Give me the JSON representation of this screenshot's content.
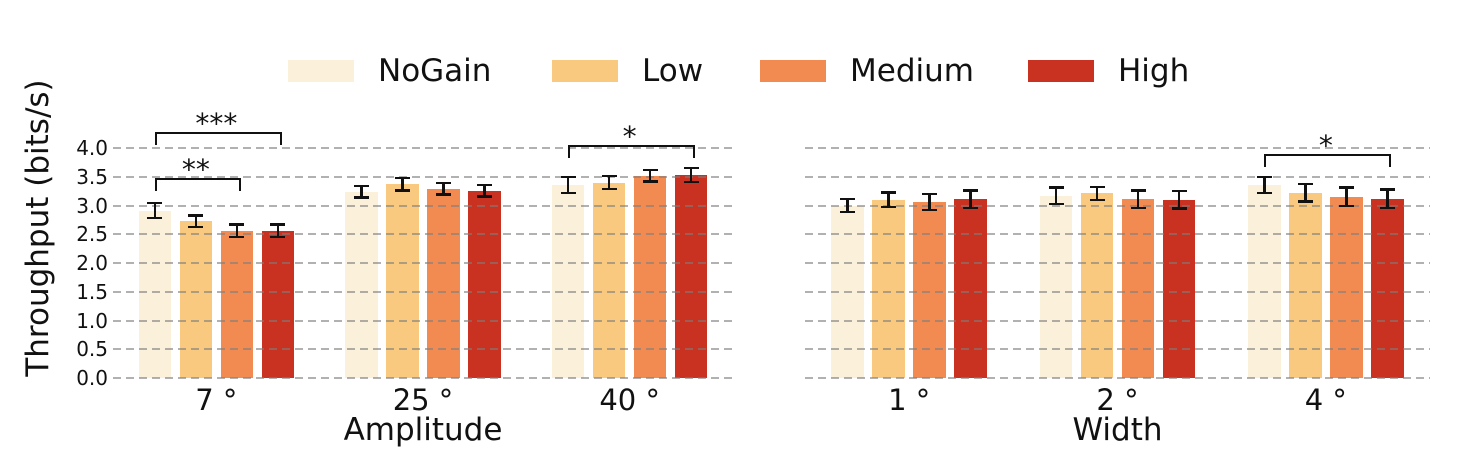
{
  "figure": {
    "ylabel": "Throughput (bits/s)",
    "background_color": "#ffffff",
    "text_color": "#111111",
    "grid_color": "#7d7d7d",
    "errorbar_color": "#111111"
  },
  "chart_data": {
    "type": "bar",
    "title": "",
    "ylabel": "Throughput (bits/s)",
    "ylim": [
      0.0,
      4.0
    ],
    "yticks": [
      0.0,
      0.5,
      1.0,
      1.5,
      2.0,
      2.5,
      3.0,
      3.5,
      4.0
    ],
    "grid": "horizontal dashed gridlines drawn over bars",
    "legend_position": "top, horizontal row",
    "error_bars": "symmetric, with caps",
    "series": [
      {
        "name": "NoGain",
        "color": "#fbf0da"
      },
      {
        "name": "Low",
        "color": "#f8c97e"
      },
      {
        "name": "Medium",
        "color": "#f18b51"
      },
      {
        "name": "High",
        "color": "#c93221"
      }
    ],
    "panels": [
      {
        "xlabel": "Amplitude",
        "groups": [
          {
            "category": "7 °",
            "values": [
              2.91,
              2.73,
              2.56,
              2.56
            ],
            "errors": [
              0.13,
              0.1,
              0.11,
              0.11
            ]
          },
          {
            "category": "25 °",
            "values": [
              3.24,
              3.37,
              3.29,
              3.26
            ],
            "errors": [
              0.1,
              0.11,
              0.1,
              0.1
            ]
          },
          {
            "category": "40 °",
            "values": [
              3.36,
              3.4,
              3.52,
              3.53
            ],
            "errors": [
              0.14,
              0.11,
              0.1,
              0.12
            ]
          }
        ]
      },
      {
        "xlabel": "Width",
        "groups": [
          {
            "category": "1 °",
            "values": [
              3.0,
              3.1,
              3.06,
              3.11
            ],
            "errors": [
              0.11,
              0.13,
              0.14,
              0.15
            ]
          },
          {
            "category": "2 °",
            "values": [
              3.17,
              3.21,
              3.11,
              3.1
            ],
            "errors": [
              0.14,
              0.11,
              0.15,
              0.15
            ]
          },
          {
            "category": "4 °",
            "values": [
              3.36,
              3.22,
              3.15,
              3.12
            ],
            "errors": [
              0.14,
              0.15,
              0.16,
              0.16
            ]
          }
        ]
      }
    ],
    "significance_brackets": [
      {
        "panel": 0,
        "category": "7 °",
        "from": "NoGain",
        "to": "High",
        "label": "***",
        "height": 4.28
      },
      {
        "panel": 0,
        "category": "7 °",
        "from": "NoGain",
        "to": "Medium",
        "label": "**",
        "height": 3.47
      },
      {
        "panel": 0,
        "category": "40 °",
        "from": "NoGain",
        "to": "High",
        "label": "*",
        "height": 4.06
      },
      {
        "panel": 1,
        "category": "4 °",
        "from": "NoGain",
        "to": "High",
        "label": "*",
        "height": 3.9
      }
    ]
  }
}
